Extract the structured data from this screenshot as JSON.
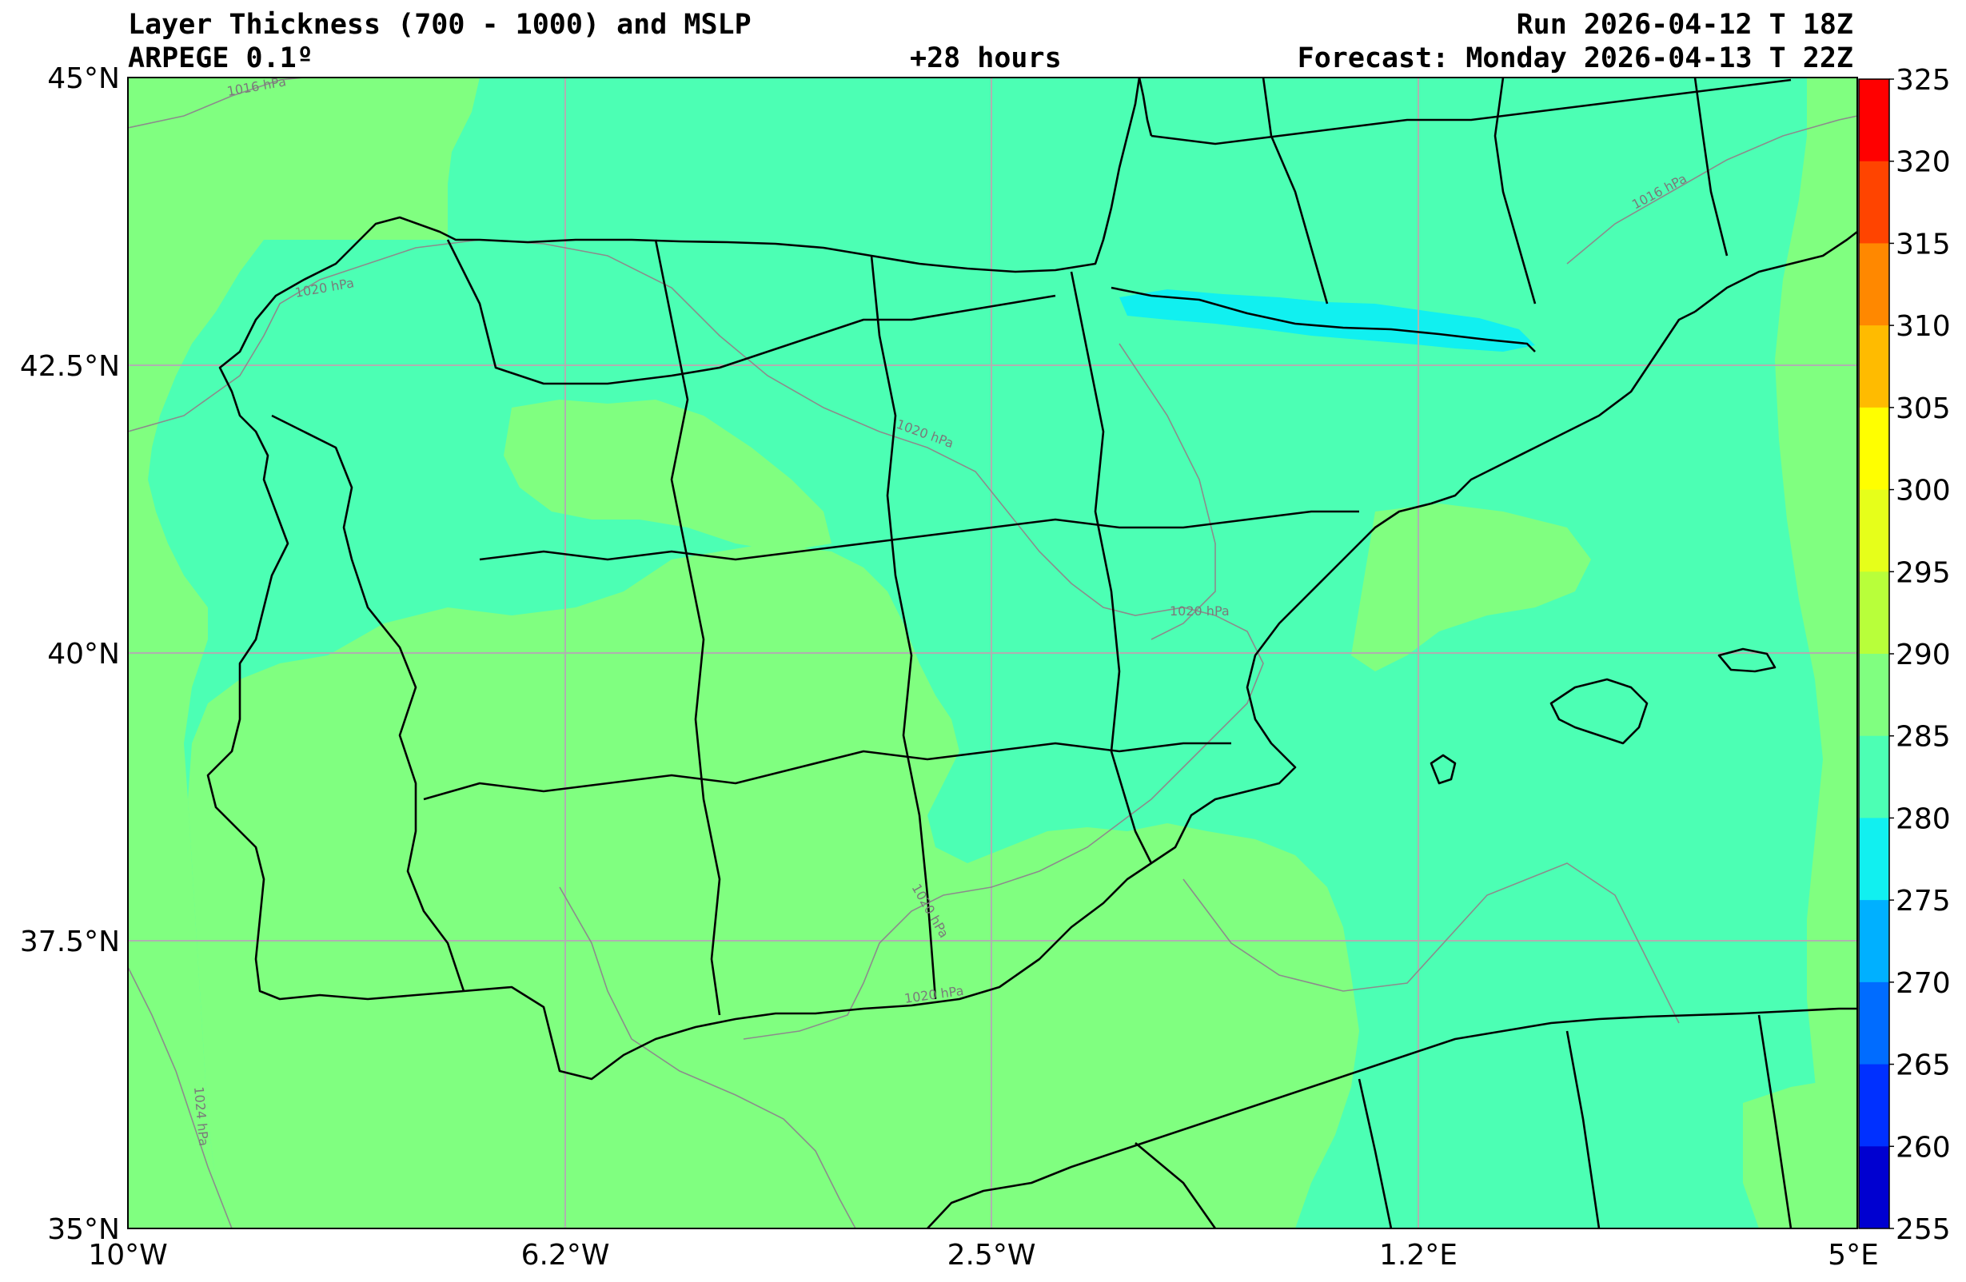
{
  "header": {
    "title": "Layer Thickness (700 - 1000) and MSLP",
    "model": "ARPEGE 0.1º",
    "lead": "+28 hours",
    "run": "Run 2026-04-12 T 18Z",
    "forecast": "Forecast: Monday 2026-04-13 T 22Z"
  },
  "axes": {
    "lat_labels": [
      "45°N",
      "42.5°N",
      "40°N",
      "37.5°N",
      "35°N"
    ],
    "lon_labels": [
      "10°W",
      "6.2°W",
      "2.5°W",
      "1.2°E",
      "5°E"
    ]
  },
  "colorbar": {
    "levels": [
      "325",
      "320",
      "315",
      "310",
      "305",
      "300",
      "295",
      "290",
      "285",
      "280",
      "275",
      "270",
      "265",
      "260",
      "255"
    ],
    "colors": [
      "#ff0000",
      "#ff4400",
      "#ff8800",
      "#ffbb00",
      "#ffff00",
      "#e6ff1a",
      "#b8ff3a",
      "#80ff80",
      "#4cffb4",
      "#11f0f0",
      "#00b0ff",
      "#006cff",
      "#0030ff",
      "#0000d0",
      "#00009a"
    ]
  },
  "isobars": [
    "1016 hPa",
    "1020 hPa",
    "1020 hPa",
    "1020 hPa",
    "1020 hPa",
    "1020 hPa",
    "1024 hPa",
    "1016 hPa"
  ],
  "colors": {
    "band_290_295": "#80ff80",
    "band_285_290": "#4cffb4",
    "band_280_285": "#11f0f0",
    "grid": "#b0b0b0",
    "isobar": "#8c8c8c",
    "coast": "#000000"
  }
}
